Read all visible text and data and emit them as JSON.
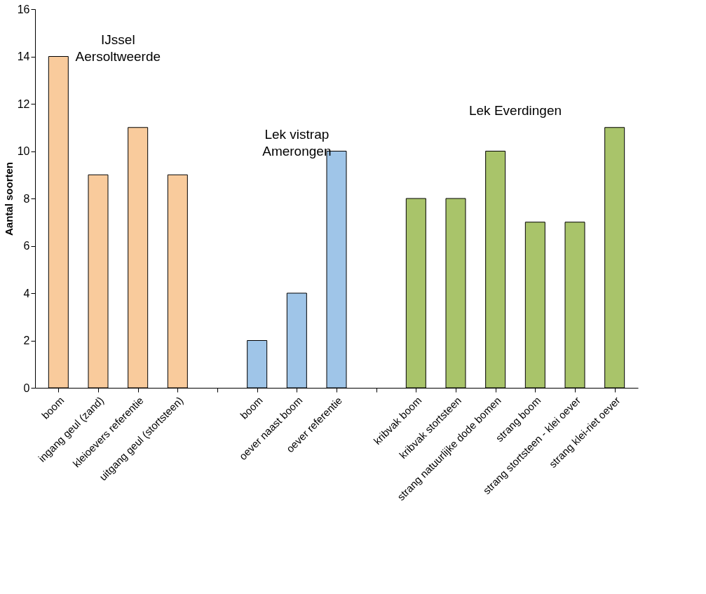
{
  "chart_data": {
    "type": "bar",
    "ylabel": "Aantal soorten",
    "categories": [
      "boom",
      "ingang geul (zand)",
      "kleioevers referentie",
      "uitgang geul (stortsteen)",
      null,
      "boom",
      "oever naast boom",
      "oever referentie",
      null,
      "kribvak boom",
      "kribvak stortsteen",
      "strang natuurlijke dode bomen",
      "strang  boom",
      "strang stortsteen - klei oever",
      "strang klei-riet oever"
    ],
    "values": [
      14,
      9,
      11,
      9,
      null,
      2,
      4,
      10,
      null,
      8,
      8,
      10,
      7,
      7,
      11
    ],
    "colors": [
      "#f9cb9c",
      "#f9cb9c",
      "#f9cb9c",
      "#f9cb9c",
      null,
      "#9fc5e8",
      "#9fc5e8",
      "#9fc5e8",
      null,
      "#a9c46a",
      "#a9c46a",
      "#a9c46a",
      "#a9c46a",
      "#a9c46a",
      "#a9c46a"
    ],
    "annotations": [
      "IJssel\nAersoltweerde",
      "Lek vistrap\nAmerongen",
      "Lek Everdingen"
    ],
    "ylim": [
      0,
      16
    ],
    "yticks": [
      0,
      2,
      4,
      6,
      8,
      10,
      12,
      14,
      16
    ],
    "grid": false
  }
}
